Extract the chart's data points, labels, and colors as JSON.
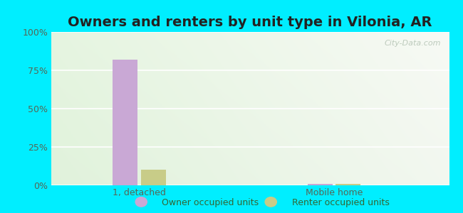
{
  "title": "Owners and renters by unit type in Vilonia, AR",
  "categories": [
    "1, detached",
    "Mobile home"
  ],
  "owner_values": [
    82,
    1
  ],
  "renter_values": [
    10,
    1
  ],
  "owner_color": "#c9a8d5",
  "renter_color": "#c8cc88",
  "bg_outer": "#00eeff",
  "ylabel_ticks": [
    "0%",
    "25%",
    "50%",
    "75%",
    "100%"
  ],
  "ytick_vals": [
    0,
    25,
    50,
    75,
    100
  ],
  "ylim": [
    0,
    100
  ],
  "title_fontsize": 14,
  "legend_labels": [
    "Owner occupied units",
    "Renter occupied units"
  ],
  "watermark": "City-Data.com",
  "bar_width": 0.28,
  "group_positions": [
    1.0,
    3.2
  ]
}
